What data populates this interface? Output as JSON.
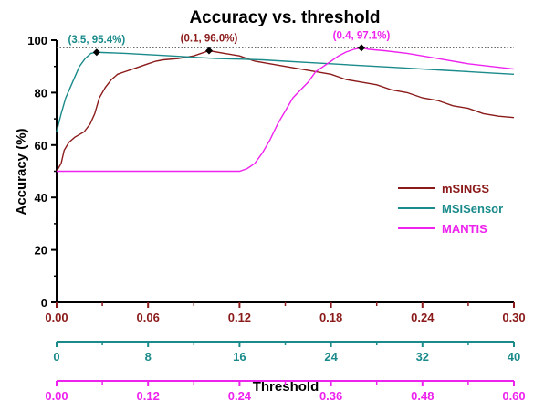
{
  "chart_data": {
    "type": "line",
    "title": "Accuracy vs. threshold",
    "ylabel": "Accuracy (%)",
    "xlabel": "Threshold",
    "ylim": [
      0,
      100
    ],
    "y_ticks": [
      "0",
      "20",
      "40",
      "60",
      "80",
      "100"
    ],
    "x_axes": [
      {
        "series": "mSINGS",
        "color": "#8b1a1a",
        "range": [
          0,
          0.3
        ],
        "ticks": [
          "0.00",
          "0.06",
          "0.12",
          "0.18",
          "0.24",
          "0.30"
        ]
      },
      {
        "series": "MSISensor",
        "color": "#1a8a8a",
        "range": [
          0,
          40
        ],
        "ticks": [
          "0",
          "8",
          "16",
          "24",
          "32",
          "40"
        ]
      },
      {
        "series": "MANTIS",
        "color": "#ee22ee",
        "range": [
          0,
          0.6
        ],
        "ticks": [
          "0.00",
          "0.12",
          "0.24",
          "0.36",
          "0.48",
          "0.60"
        ]
      }
    ],
    "reference_line": {
      "y": 97.1,
      "style": "dotted"
    },
    "legend": {
      "placement": "right",
      "entries": [
        "mSINGS",
        "MSISensor",
        "MANTIS"
      ]
    },
    "series": [
      {
        "name": "mSINGS",
        "color": "#8b1a1a",
        "axis": 0,
        "points": [
          [
            0,
            50
          ],
          [
            0.003,
            53
          ],
          [
            0.005,
            58
          ],
          [
            0.008,
            61
          ],
          [
            0.012,
            63
          ],
          [
            0.018,
            65
          ],
          [
            0.022,
            68
          ],
          [
            0.025,
            72
          ],
          [
            0.028,
            78
          ],
          [
            0.032,
            82
          ],
          [
            0.036,
            85
          ],
          [
            0.04,
            87
          ],
          [
            0.045,
            88
          ],
          [
            0.05,
            89
          ],
          [
            0.055,
            90
          ],
          [
            0.06,
            91
          ],
          [
            0.065,
            92
          ],
          [
            0.07,
            92.5
          ],
          [
            0.08,
            93
          ],
          [
            0.09,
            94
          ],
          [
            0.1,
            96
          ],
          [
            0.11,
            95
          ],
          [
            0.12,
            94
          ],
          [
            0.13,
            92
          ],
          [
            0.14,
            91
          ],
          [
            0.15,
            90
          ],
          [
            0.16,
            89
          ],
          [
            0.17,
            88
          ],
          [
            0.18,
            87
          ],
          [
            0.19,
            85
          ],
          [
            0.2,
            84
          ],
          [
            0.21,
            83
          ],
          [
            0.22,
            81
          ],
          [
            0.23,
            80
          ],
          [
            0.24,
            78
          ],
          [
            0.25,
            77
          ],
          [
            0.26,
            75
          ],
          [
            0.27,
            74
          ],
          [
            0.28,
            72
          ],
          [
            0.29,
            71
          ],
          [
            0.3,
            70.5
          ]
        ]
      },
      {
        "name": "MSISensor",
        "color": "#1a8a8a",
        "axis": 1,
        "points": [
          [
            0,
            65
          ],
          [
            0.4,
            72
          ],
          [
            0.8,
            78
          ],
          [
            1.2,
            82
          ],
          [
            1.6,
            86
          ],
          [
            2,
            90
          ],
          [
            2.5,
            93
          ],
          [
            3,
            95
          ],
          [
            3.5,
            95.4
          ],
          [
            4,
            95.3
          ],
          [
            6,
            95
          ],
          [
            8,
            94.5
          ],
          [
            10,
            94
          ],
          [
            12,
            93.5
          ],
          [
            14,
            93
          ],
          [
            16,
            92.8
          ],
          [
            18,
            92.5
          ],
          [
            20,
            92
          ],
          [
            22,
            91.5
          ],
          [
            24,
            91
          ],
          [
            26,
            90.5
          ],
          [
            28,
            90
          ],
          [
            30,
            89.5
          ],
          [
            32,
            89
          ],
          [
            34,
            88.5
          ],
          [
            36,
            88
          ],
          [
            38,
            87.5
          ],
          [
            40,
            87
          ]
        ]
      },
      {
        "name": "MANTIS",
        "color": "#ee22ee",
        "axis": 2,
        "points": [
          [
            0,
            50
          ],
          [
            0.05,
            50
          ],
          [
            0.1,
            50
          ],
          [
            0.15,
            50
          ],
          [
            0.2,
            50
          ],
          [
            0.24,
            50
          ],
          [
            0.25,
            51
          ],
          [
            0.26,
            53
          ],
          [
            0.27,
            57
          ],
          [
            0.28,
            62
          ],
          [
            0.29,
            68
          ],
          [
            0.3,
            73
          ],
          [
            0.31,
            78
          ],
          [
            0.32,
            81
          ],
          [
            0.33,
            84
          ],
          [
            0.34,
            88
          ],
          [
            0.35,
            90
          ],
          [
            0.36,
            92
          ],
          [
            0.37,
            94
          ],
          [
            0.38,
            95.5
          ],
          [
            0.39,
            96.5
          ],
          [
            0.4,
            97.1
          ],
          [
            0.41,
            96.5
          ],
          [
            0.43,
            96
          ],
          [
            0.46,
            95
          ],
          [
            0.5,
            93
          ],
          [
            0.54,
            91
          ],
          [
            0.57,
            90
          ],
          [
            0.6,
            89
          ]
        ]
      }
    ],
    "annotations": [
      {
        "label": "(3.5, 95.4%)",
        "series": "MSISensor",
        "x": 3.5,
        "y": 95.4,
        "color": "#1a8a8a"
      },
      {
        "label": "(0.1, 96.0%)",
        "series": "mSINGS",
        "x": 0.1,
        "y": 96.0,
        "color": "#8b1a1a"
      },
      {
        "label": "(0.4, 97.1%)",
        "series": "MANTIS",
        "x": 0.4,
        "y": 97.1,
        "color": "#ee22ee"
      }
    ]
  }
}
